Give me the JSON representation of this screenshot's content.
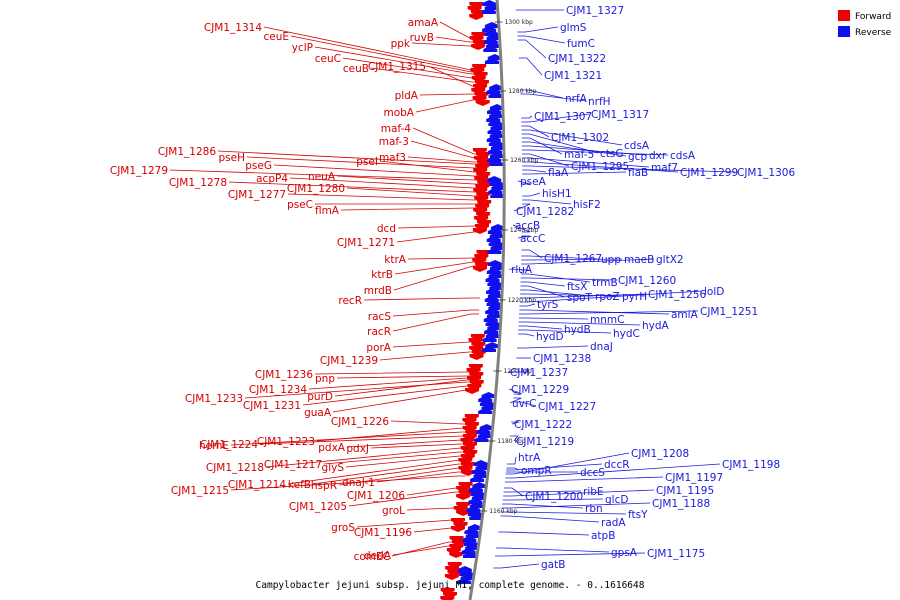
{
  "colors": {
    "forward": "#ee0000",
    "reverse": "#1010ee",
    "backbone": "#808080"
  },
  "legend": [
    {
      "label": "Forward",
      "color": "#ee0000"
    },
    {
      "label": "Reverse",
      "color": "#1010ee"
    }
  ],
  "caption": "Campylobacter jejuni subsp. jejuni M1, complete genome. - 0..1616648",
  "ticks": [
    "1300 kbp",
    "1280 kbp",
    "1260 kbp",
    "1240 kbp",
    "1220 kbp",
    "1200 kbp",
    "1180 kbp",
    "1160 kbp"
  ],
  "forward_labels": [
    "CJM1_1314",
    "amaA",
    "ceuE",
    "ruvB",
    "yclP",
    "ppk",
    "ceuC",
    "ceuB",
    "CJM1_1315",
    "pldA",
    "mobA",
    "maf-4",
    "maf-3",
    "maf3",
    "CJM1_1286",
    "pseH",
    "pseI",
    "pseG",
    "CJM1_1279",
    "neuA",
    "acpP4",
    "CJM1_1278",
    "CJM1_1280",
    "CJM1_1277",
    "pseC",
    "flmA",
    "dcd",
    "CJM1_1271",
    "ktrA",
    "ktrB",
    "mrdB",
    "recR",
    "racS",
    "racR",
    "porA",
    "CJM1_1239",
    "CJM1_1236",
    "pnp",
    "CJM1_1234",
    "purD",
    "CJM1_1233",
    "CJM1_1231",
    "guaA",
    "CJM1_1226",
    "CJM1_1223",
    "hemE",
    "CJM1_1224",
    "pdxA",
    "pdxJ",
    "CJM1_1218",
    "CJM1_1217",
    "glyS",
    "CJM1_1214",
    "kefB",
    "hspR",
    "dnaJ-1",
    "CJM1_1215",
    "CJM1_1206",
    "CJM1_1205",
    "groL",
    "groS",
    "CJM1_1196",
    "comEC",
    "dedA"
  ],
  "reverse_labels": [
    "CJM1_1327",
    "glmS",
    "fumC",
    "CJM1_1322",
    "CJM1_1321",
    "nrfA",
    "nrfH",
    "CJM1_1307",
    "CJM1_1317",
    "CJM1_1302",
    "cdsA",
    "ctsG",
    "maf-5",
    "gcp",
    "dxr",
    "cdsA",
    "CJM1_1295",
    "maf7",
    "CJM1_1299",
    "CJM1_1306",
    "flaA",
    "flaB",
    "pseA",
    "hisH1",
    "hisF2",
    "CJM1_1282",
    "accB",
    "accC",
    "CJM1_1267",
    "upp",
    "maeB",
    "gltX2",
    "rluA",
    "trmB",
    "CJM1_1260",
    "ftsX",
    "spoT",
    "rpoZ",
    "pyrH",
    "CJM1_1256",
    "lolD",
    "tyrS",
    "amiA",
    "CJM1_1251",
    "mnmC",
    "hydA",
    "hydB",
    "hydC",
    "hydD",
    "dnaJ",
    "CJM1_1238",
    "CJM1_1237",
    "CJM1_1229",
    "uvrC",
    "CJM1_1227",
    "CJM1_1222",
    "CJM1_1219",
    "htrA",
    "ompR",
    "dccR",
    "dccS",
    "CJM1_1208",
    "CJM1_1198",
    "CJM1_1197",
    "CJM1_1200",
    "ribE",
    "CJM1_1195",
    "glcD",
    "rbn",
    "CJM1_1188",
    "ftsY",
    "radA",
    "atpB",
    "gpsA",
    "CJM1_1175",
    "gatB"
  ]
}
